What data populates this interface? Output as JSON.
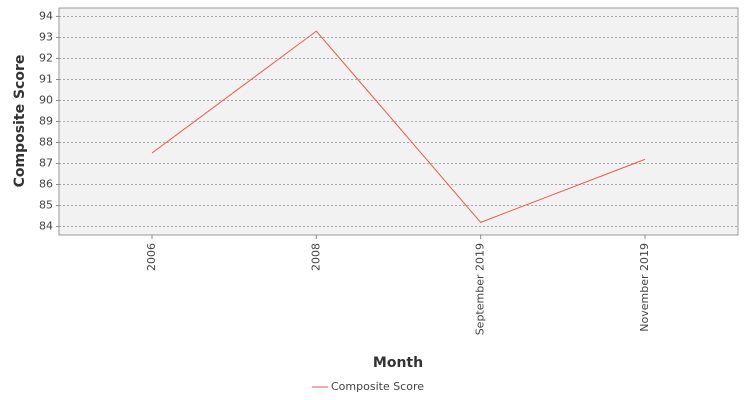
{
  "chart_data": {
    "type": "line",
    "x_label": "Month",
    "y_label": "Composite Score",
    "categories": [
      "2006",
      "2008",
      "September 2019",
      "November 2019"
    ],
    "series": [
      {
        "name": "Composite Score",
        "color": "#f0564b",
        "values": [
          87.5,
          93.3,
          84.2,
          87.2
        ]
      }
    ],
    "ylim": [
      83.6,
      94.4
    ],
    "yticks": [
      84,
      85,
      86,
      87,
      88,
      89,
      90,
      91,
      92,
      93,
      94
    ],
    "grid": true,
    "legend": "bottom"
  }
}
